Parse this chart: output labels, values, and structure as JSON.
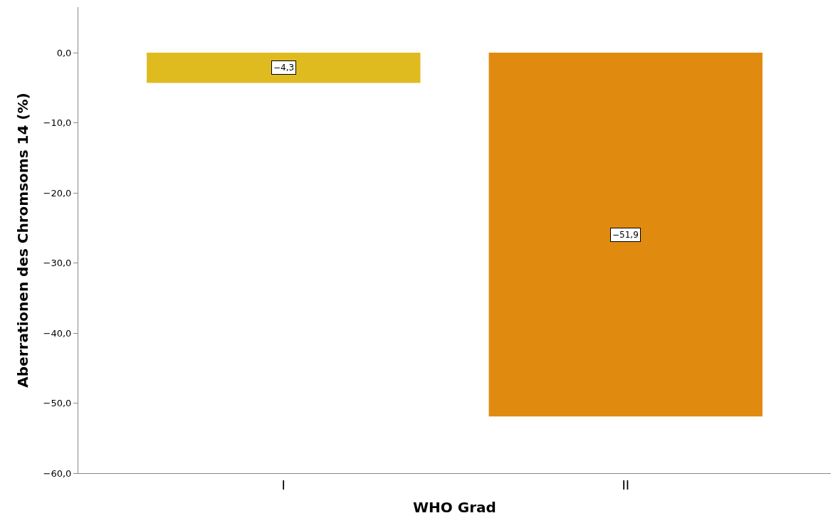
{
  "chart_data": {
    "type": "bar",
    "xlabel": "WHO Grad",
    "ylabel": "Aberrationen des Chromsoms 14 (%)",
    "categories": [
      "I",
      "II"
    ],
    "values": [
      -4.3,
      -51.9
    ],
    "colors": [
      "#e0bb20",
      "#e08a10"
    ],
    "value_labels": [
      "−4,3",
      "−51,9"
    ],
    "yticks": [
      {
        "value": -60,
        "label": "−60,0"
      },
      {
        "value": -50,
        "label": "−50,0"
      },
      {
        "value": -40,
        "label": "−40,0"
      },
      {
        "value": -30,
        "label": "−30,0"
      },
      {
        "value": -20,
        "label": "−20,0"
      },
      {
        "value": -10,
        "label": "−10,0"
      },
      {
        "value": 0,
        "label": "0,0"
      }
    ],
    "ylim": [
      -60,
      6.5
    ]
  }
}
